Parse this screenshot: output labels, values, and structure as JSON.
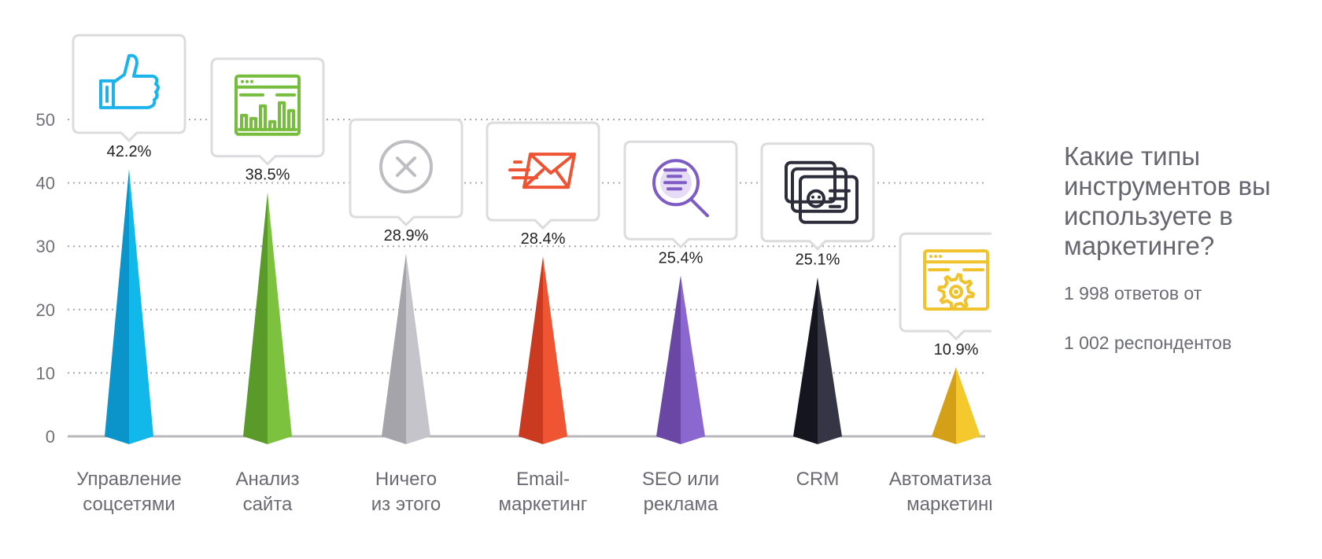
{
  "chart_data": {
    "type": "bar",
    "title": "Какие типы инструментов вы используете в маркетинге?",
    "subtitle_line1": "1 998 ответов от",
    "subtitle_line2": "1 002 респондентов",
    "ylim": [
      0,
      50
    ],
    "yticks": [
      "0",
      "10",
      "20",
      "30",
      "40",
      "50"
    ],
    "grid": true,
    "categories": [
      [
        "Управление",
        "соцсетями"
      ],
      [
        "Анализ",
        "сайта"
      ],
      [
        "Ничего",
        "из этого"
      ],
      [
        "Email-",
        "маркетинг"
      ],
      [
        "SEO или",
        "реклама"
      ],
      [
        "CRM",
        ""
      ],
      [
        "Автоматизация",
        "маркетинга"
      ]
    ],
    "values": [
      42.2,
      38.5,
      28.9,
      28.4,
      25.4,
      25.1,
      10.9
    ],
    "labels": [
      "42.2%",
      "38.5%",
      "28.9%",
      "28.4%",
      "25.4%",
      "25.1%",
      "10.9%"
    ],
    "icons": [
      "thumbs-up-icon",
      "analytics-chart-icon",
      "cancel-x-icon",
      "email-envelope-icon",
      "magnifier-search-icon",
      "crm-cards-icon",
      "automation-gear-icon"
    ],
    "colors": [
      [
        "#0a94c9",
        "#12b8ea"
      ],
      [
        "#5a9a2a",
        "#7cc23f"
      ],
      [
        "#a4a4aa",
        "#c4c4ca"
      ],
      [
        "#c93a20",
        "#ef5533"
      ],
      [
        "#6a47a5",
        "#8a68cf"
      ],
      [
        "#15151f",
        "#353545"
      ],
      [
        "#d3a017",
        "#f4c92d"
      ]
    ]
  }
}
